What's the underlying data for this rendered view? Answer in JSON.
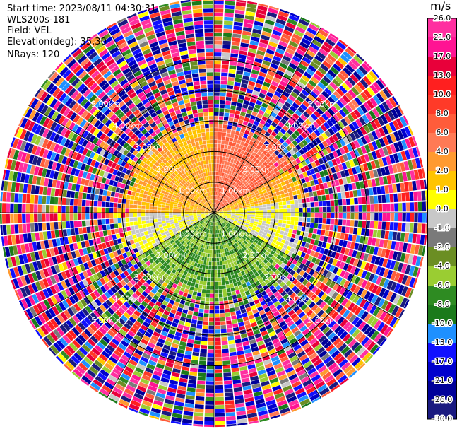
{
  "header": {
    "start_time": "Start time: 2023/08/11 04:30:31",
    "instrument": "WLS200s-181",
    "field": "Field: VEL",
    "elevation": "Elevation(deg): 35.30",
    "nrays": "NRays: 120"
  },
  "colorbar": {
    "unit": "m/s",
    "ticks": [
      "26.0",
      "21.0",
      "17.0",
      "13.0",
      "10.0",
      "8.0",
      "6.0",
      "4.0",
      "2.0",
      "1.0",
      "0.0",
      "-1.0",
      "-2.0",
      "-4.0",
      "-6.0",
      "-8.0",
      "-10.0",
      "-13.0",
      "-17.0",
      "-21.0",
      "-26.0",
      "-30.0"
    ],
    "colors": [
      "#ff2fa0",
      "#ff1493",
      "#e8003a",
      "#ff1f1f",
      "#ff3a28",
      "#ff5c3a",
      "#ff7a55",
      "#ff9a30",
      "#ffc400",
      "#ffff00",
      "#c8c8c8",
      "#7a7a7a",
      "#6b8e23",
      "#9acd32",
      "#2e8b22",
      "#1a7a1a",
      "#1e90ff",
      "#1010ff",
      "#0000cd",
      "#000099",
      "#1a1a80"
    ]
  },
  "ppi": {
    "range_rings_km": [
      {
        "radius": 1.0,
        "label": "1.00km"
      },
      {
        "radius": 2.0,
        "label": "2.00km"
      },
      {
        "radius": 3.0,
        "label": "3.00km"
      },
      {
        "radius": 4.0,
        "label": "4.00km"
      },
      {
        "radius": 5.0,
        "label": "5.00km"
      }
    ],
    "max_range_km": 7.0,
    "spokes_deg": [
      0,
      30,
      60,
      90,
      120,
      150,
      180,
      210,
      240,
      270,
      300,
      330
    ],
    "n_rays": 120,
    "inner_field": [
      {
        "from_deg": 290,
        "to_deg": 360,
        "value": 2.0
      },
      {
        "from_deg": 0,
        "to_deg": 60,
        "value": 6.0
      },
      {
        "from_deg": 60,
        "to_deg": 80,
        "value": 2.0
      },
      {
        "from_deg": 80,
        "to_deg": 120,
        "value": 0.0
      },
      {
        "from_deg": 120,
        "to_deg": 240,
        "value": -6.0
      },
      {
        "from_deg": 240,
        "to_deg": 270,
        "value": 0.0
      },
      {
        "from_deg": 270,
        "to_deg": 290,
        "value": 2.0
      }
    ]
  }
}
